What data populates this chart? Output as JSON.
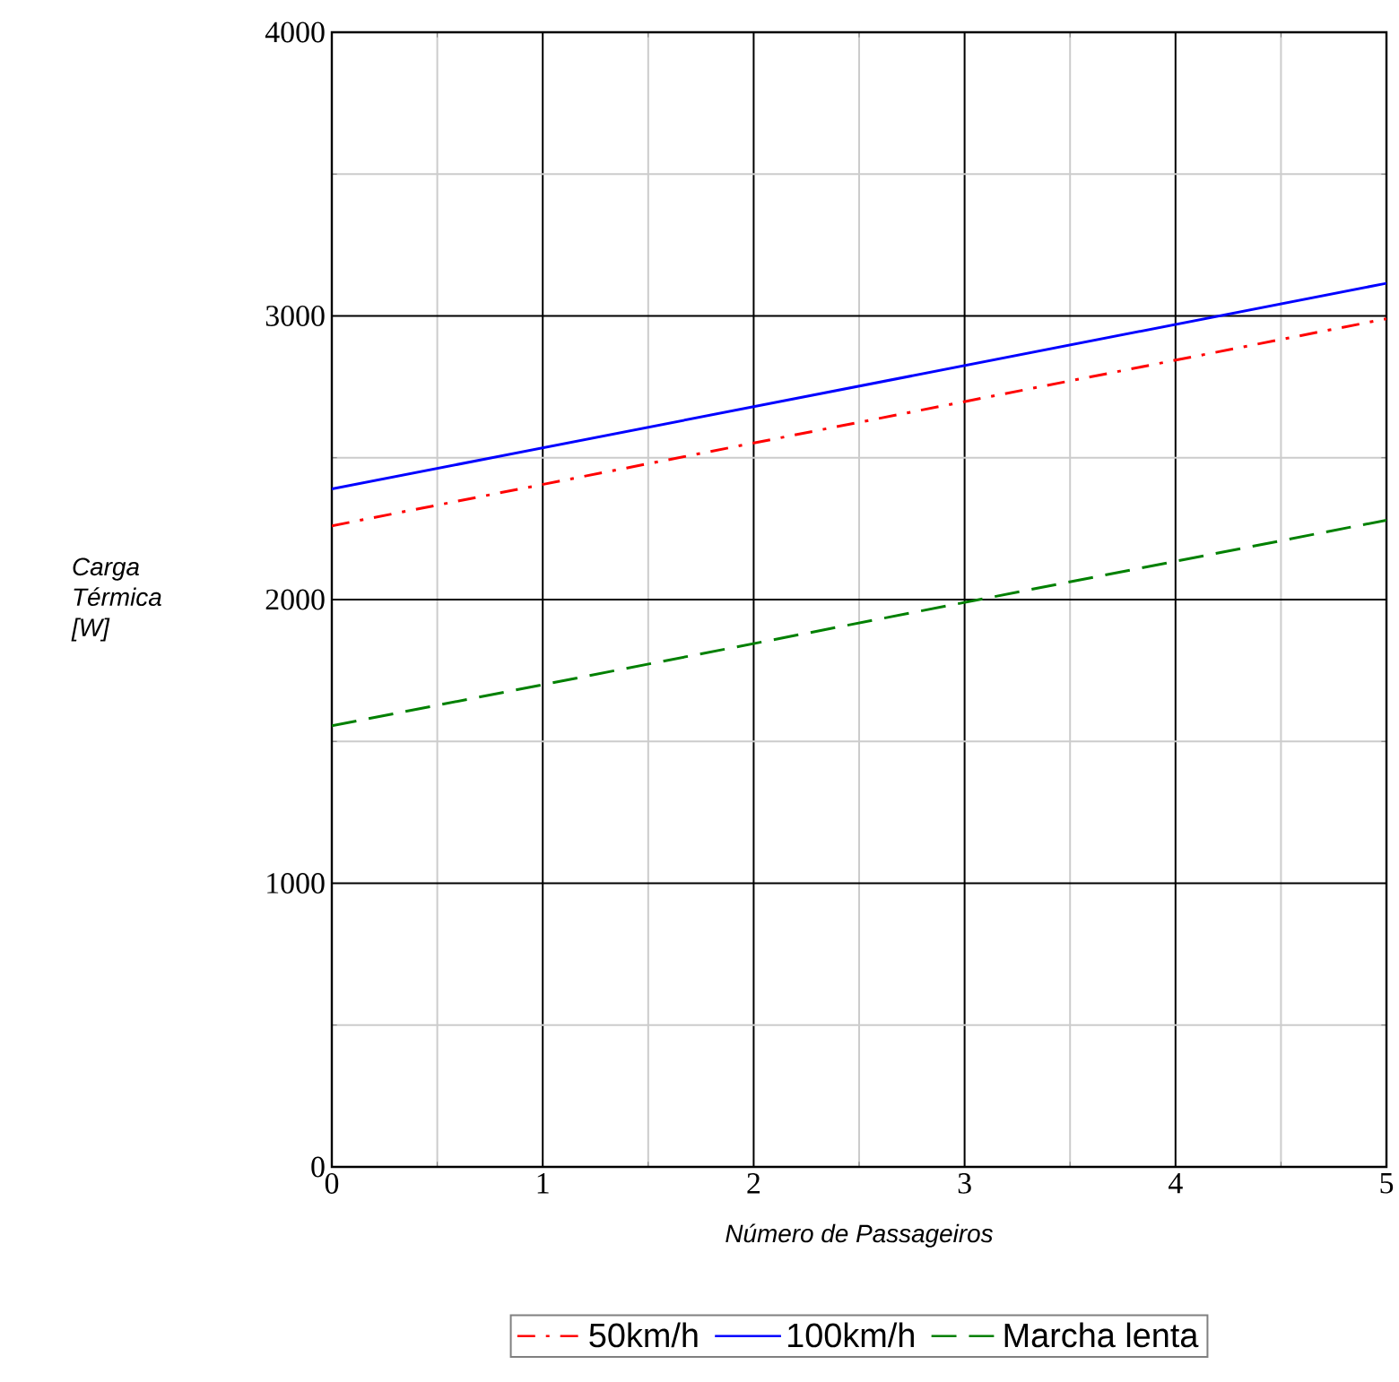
{
  "chart_data": {
    "type": "line",
    "xlabel": "Número de Passageiros",
    "ylabel": "Carga Térmica [W]",
    "x": [
      0,
      5
    ],
    "xlim": [
      0,
      5
    ],
    "xticks": [
      0,
      1,
      2,
      3,
      4,
      5
    ],
    "ylim": [
      0,
      4000
    ],
    "yticks": [
      0,
      1000,
      2000,
      3000,
      4000
    ],
    "grid": true,
    "legend": "bottom",
    "series": [
      {
        "name": "50km/h",
        "color": "#ff0000",
        "line_style": "dashdot",
        "values": [
          2260,
          2990
        ]
      },
      {
        "name": "100km/h",
        "color": "#0000ff",
        "line_style": "solid",
        "values": [
          2390,
          3115
        ]
      },
      {
        "name": "Marcha lenta",
        "color": "#008000",
        "line_style": "dashed",
        "values": [
          1555,
          2280
        ]
      }
    ]
  }
}
